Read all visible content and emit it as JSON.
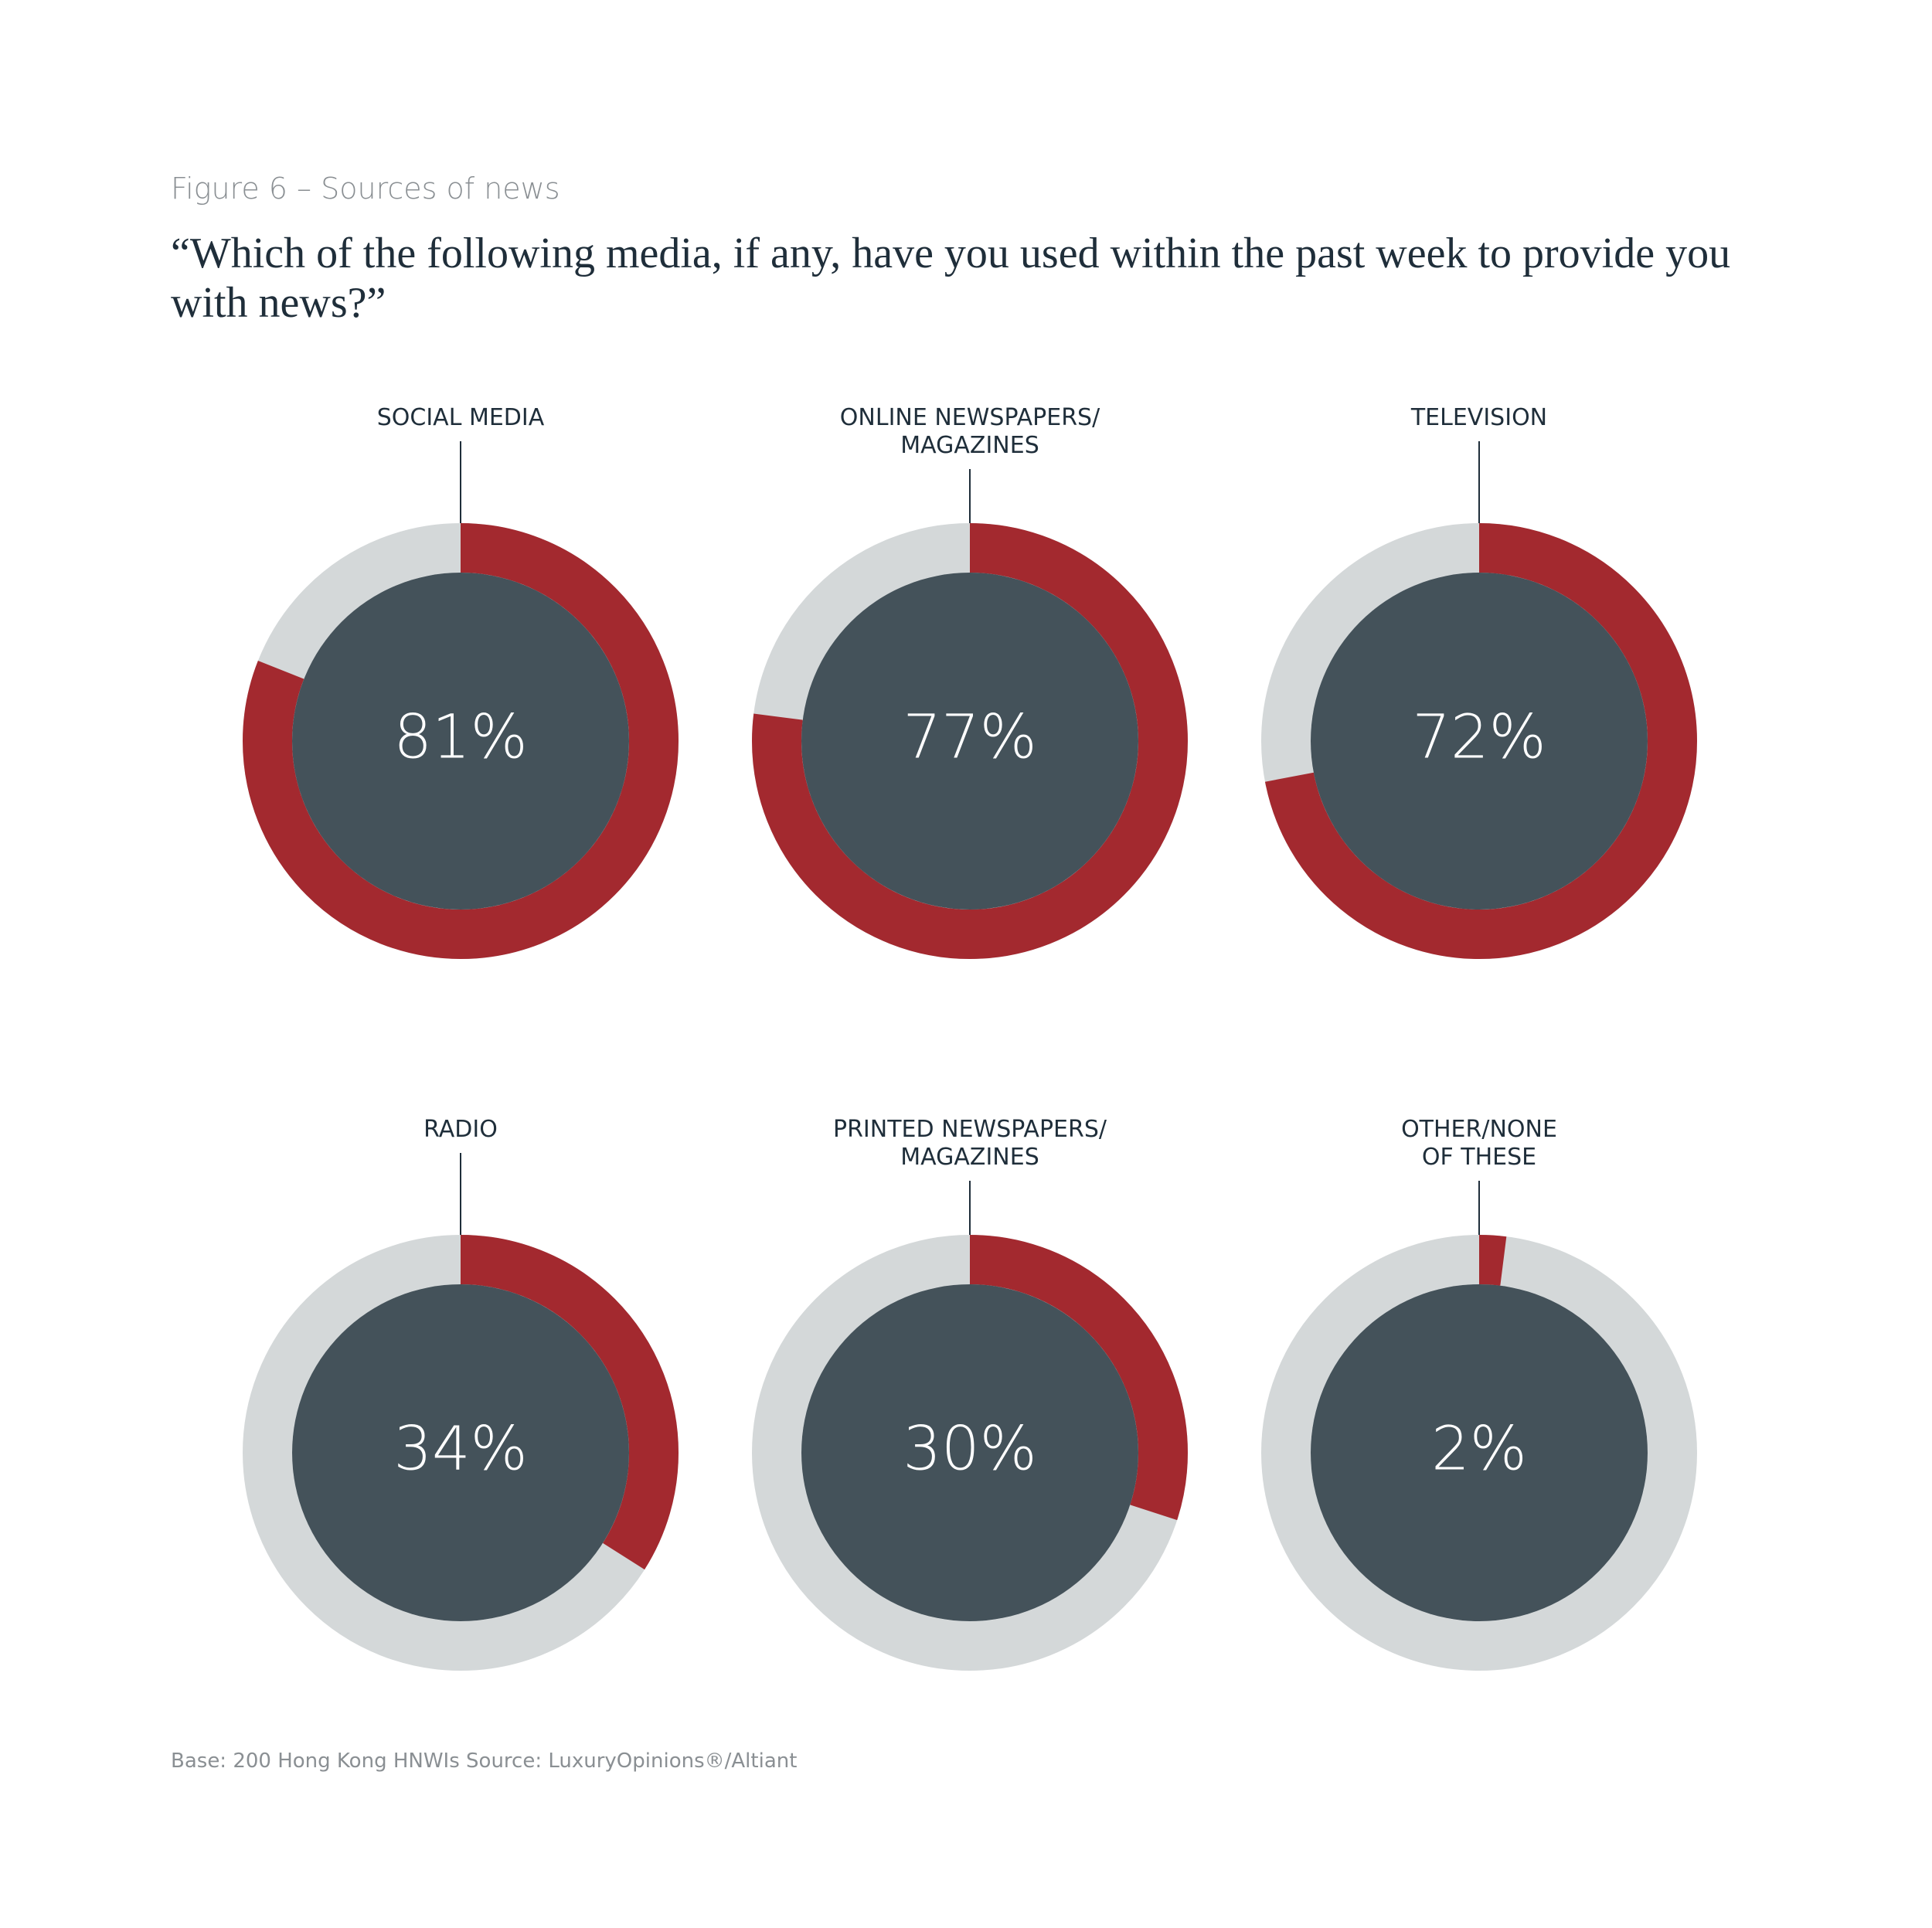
{
  "chart_data": {
    "type": "donut",
    "title": "Figure 6 – Sources of news",
    "subtitle": "“Which of the following media, if any, have you used within the past week to provide you\nwith news?”",
    "note": "Base: 200 Hong Kong HNWIs  Source: LuxuryOpinions®/Altiant",
    "categories": [
      "SOCIAL MEDIA",
      "ONLINE NEWSPAPERS/\nMAGAZINES",
      "TELEVISION",
      "RADIO",
      "PRINTED NEWSPAPERS/\nMAGAZINES",
      "OTHER/NONE\nOF THESE"
    ],
    "values": [
      81,
      77,
      72,
      34,
      30,
      2
    ],
    "value_labels": [
      "81%",
      "77%",
      "72%",
      "34%",
      "30%",
      "2%"
    ],
    "color": "#a3292f",
    "track_color": "#d4d8d9"
  }
}
